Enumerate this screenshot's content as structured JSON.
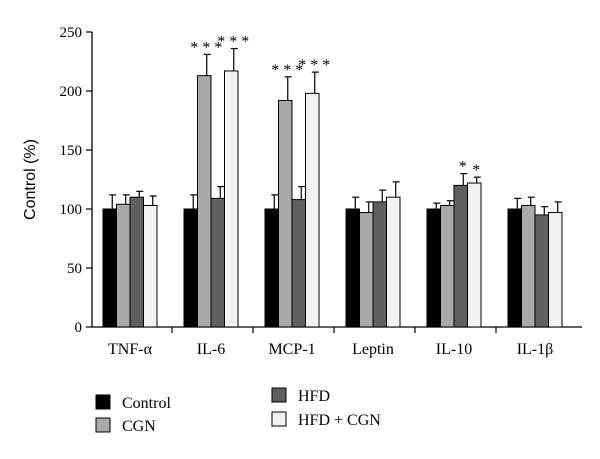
{
  "chart_data": {
    "type": "bar",
    "title": "",
    "xlabel": "",
    "ylabel": "Control (%)",
    "ylim": [
      0,
      250
    ],
    "yticks": [
      0,
      50,
      100,
      150,
      200,
      250
    ],
    "grid": false,
    "legend_position": "bottom",
    "categories": [
      "TNF-α",
      "IL-6",
      "MCP-1",
      "Leptin",
      "IL-10",
      "IL-1β"
    ],
    "series": [
      {
        "name": "Control",
        "color": "#000000",
        "values": [
          100,
          100,
          100,
          100,
          100,
          100
        ],
        "errors": [
          12,
          12,
          12,
          10,
          5,
          9
        ],
        "significance": [
          "",
          "",
          "",
          "",
          "",
          ""
        ]
      },
      {
        "name": "CGN",
        "color": "#a9a9a9",
        "values": [
          104,
          213,
          192,
          97,
          103,
          103
        ],
        "errors": [
          8,
          18,
          20,
          9,
          4,
          7
        ],
        "significance": [
          "",
          "***",
          "***",
          "",
          "",
          ""
        ]
      },
      {
        "name": "HFD",
        "color": "#606060",
        "values": [
          110,
          109,
          108,
          106,
          120,
          95
        ],
        "errors": [
          5,
          10,
          11,
          10,
          10,
          7
        ],
        "significance": [
          "",
          "",
          "",
          "",
          "*",
          ""
        ]
      },
      {
        "name": "HFD + CGN",
        "color": "#f2f2f2",
        "values": [
          103,
          217,
          198,
          110,
          122,
          97
        ],
        "errors": [
          8,
          19,
          18,
          13,
          5,
          9
        ],
        "significance": [
          "",
          "***",
          "***",
          "",
          "*",
          ""
        ]
      }
    ]
  }
}
